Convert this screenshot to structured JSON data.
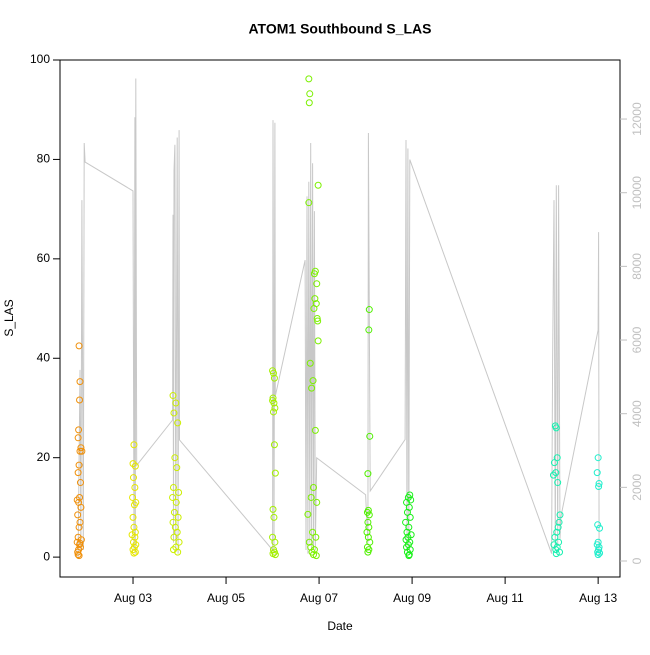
{
  "chart_data": {
    "type": "scatter",
    "title": "ATOM1 Southbound S_LAS",
    "x_label": "Date",
    "y_label": "S_LAS",
    "xlim": [
      1.43,
      13.47
    ],
    "xticks": [
      {
        "value": 3,
        "label": "Aug 03"
      },
      {
        "value": 5,
        "label": "Aug 05"
      },
      {
        "value": 7,
        "label": "Aug 07"
      },
      {
        "value": 9,
        "label": "Aug 09"
      },
      {
        "value": 11,
        "label": "Aug 11"
      },
      {
        "value": 13,
        "label": "Aug 13"
      }
    ],
    "ylim": [
      -4,
      100
    ],
    "yticks": [
      0,
      20,
      40,
      60,
      80,
      100
    ],
    "y2lim": [
      -434,
      13603
    ],
    "y2ticks": [
      0,
      2000,
      4000,
      6000,
      8000,
      10000,
      12000
    ],
    "y2_color": "#c0c0c0",
    "series": [
      {
        "color": "#f0900a",
        "x": [
          1.84,
          1.86,
          1.85,
          1.83,
          1.82,
          1.88,
          1.86,
          1.9,
          1.84,
          1.82,
          1.87,
          1.85,
          1.8,
          1.83,
          1.88,
          1.81,
          1.86,
          1.84,
          1.82,
          1.8,
          1.85,
          1.87,
          1.83,
          1.81,
          1.82,
          1.84,
          1.89,
          1.86
        ],
        "values": [
          42.5,
          35.3,
          31.6,
          25.6,
          24,
          22,
          21.3,
          21.3,
          18.5,
          17,
          15,
          12,
          11.5,
          11,
          10,
          8.5,
          7,
          6,
          4,
          3,
          2.5,
          2,
          1.5,
          1,
          0.5,
          0.3,
          3.5,
          2.8
        ]
      },
      {
        "color": "#e6e600",
        "x": [
          3.02,
          3.0,
          3.05,
          3.01,
          3.04,
          2.99,
          3.06,
          3.03,
          3.0,
          3.02,
          3.05,
          2.98,
          3.04,
          3.01,
          3.06,
          3.03,
          3.0,
          3.05,
          3.02
        ],
        "values": [
          22.6,
          18.8,
          18.3,
          16,
          14,
          12,
          11,
          10.5,
          8,
          6,
          5,
          4.5,
          4,
          3,
          2.5,
          2,
          1.5,
          1,
          0.8
        ]
      },
      {
        "color": "#ccee00",
        "x": [
          3.86,
          3.92,
          3.88,
          3.96,
          3.9,
          3.94,
          3.87,
          3.98,
          3.85,
          3.93,
          3.89,
          3.97,
          3.86,
          3.91,
          3.95,
          3.88,
          3.99,
          3.92,
          3.87,
          3.96
        ],
        "values": [
          32.5,
          31,
          29,
          27,
          20,
          18,
          14,
          13,
          12,
          11,
          9,
          8,
          7,
          6,
          5,
          4,
          3,
          2,
          1.5,
          1
        ]
      },
      {
        "color": "#a4f000",
        "x": [
          6.0,
          6.02,
          6.04,
          6.01,
          6.0,
          6.03,
          6.05,
          6.02,
          6.04,
          6.06,
          6.01,
          6.03,
          6.0,
          6.05,
          6.02,
          6.04,
          6.01,
          6.06
        ],
        "values": [
          37.5,
          37,
          36,
          32,
          31.5,
          31,
          30,
          29.2,
          22.6,
          16.9,
          9.6,
          8,
          4,
          3,
          1.5,
          1,
          0.7,
          0.5
        ]
      },
      {
        "color": "#7cf000",
        "x": [
          6.78,
          6.8,
          6.79,
          6.98,
          6.78,
          6.92,
          6.9,
          6.95,
          6.91,
          6.94,
          6.89,
          6.96,
          6.97,
          6.98,
          6.81,
          6.87,
          6.84,
          6.92,
          6.88,
          6.83,
          6.95,
          6.76,
          6.86,
          6.93,
          6.79,
          6.82,
          6.9,
          6.85,
          6.88,
          6.94
        ],
        "values": [
          96.2,
          93.2,
          91.4,
          74.8,
          71.3,
          57.5,
          57,
          55,
          52,
          51,
          50,
          48,
          47.5,
          43.5,
          39,
          35.5,
          34,
          25.5,
          14,
          12,
          11,
          8.6,
          5,
          4,
          3,
          2,
          1.5,
          1,
          0.5,
          0.3
        ]
      },
      {
        "color": "#50f000",
        "x": [
          8.08,
          8.07,
          8.09,
          8.05,
          8.06,
          8.04,
          8.08,
          8.05,
          8.07,
          8.03,
          8.06,
          8.09,
          8.04,
          8.07,
          8.05
        ],
        "values": [
          49.8,
          45.7,
          24.3,
          16.8,
          9.4,
          9,
          8.5,
          7,
          6,
          5,
          4,
          3,
          2,
          1.5,
          1
        ]
      },
      {
        "color": "#18f018",
        "x": [
          8.95,
          8.92,
          8.97,
          8.88,
          8.94,
          8.9,
          8.96,
          8.86,
          8.93,
          8.89,
          8.98,
          8.91,
          8.87,
          8.95,
          8.92,
          8.88,
          8.96,
          8.9,
          8.94,
          8.93
        ],
        "values": [
          12.5,
          12,
          11.5,
          11,
          10,
          9,
          8,
          7,
          6,
          5,
          4.5,
          4,
          3.5,
          3,
          2.5,
          2,
          1.5,
          1,
          0.5,
          0.3
        ]
      },
      {
        "color": "#18f0b0",
        "x": [
          12.08,
          12.1,
          12.12,
          12.06,
          12.09,
          12.04,
          12.13,
          12.18,
          12.16,
          12.14,
          12.11,
          12.07,
          12.15,
          12.05,
          12.12,
          12.09,
          12.17,
          12.1
        ],
        "values": [
          26.4,
          26,
          20,
          19,
          17,
          16.5,
          15,
          8.5,
          7,
          6,
          5,
          4,
          3,
          2.5,
          2,
          1.5,
          1,
          0.7
        ]
      },
      {
        "color": "#20eecc",
        "x": [
          13.0,
          12.98,
          13.02,
          13.01,
          12.99,
          13.03,
          13.0,
          12.98,
          13.02,
          13.01,
          12.99,
          13.03,
          13.0
        ],
        "values": [
          20,
          17,
          14.8,
          14.2,
          6.5,
          5.8,
          3,
          2.5,
          2,
          1.5,
          1,
          0.8,
          0.5
        ]
      }
    ],
    "line": {
      "axis": "y2",
      "color": "#c8c8c8",
      "x": [
        1.82,
        1.86,
        1.88,
        1.9,
        1.93,
        1.95,
        1.97,
        3.0,
        3.02,
        3.04,
        3.05,
        3.06,
        3.08,
        3.85,
        3.86,
        3.87,
        3.88,
        3.9,
        3.92,
        3.95,
        3.97,
        3.99,
        4.0,
        6.0,
        6.01,
        6.03,
        6.05,
        6.06,
        6.7,
        6.72,
        6.74,
        6.76,
        6.78,
        6.8,
        6.82,
        6.84,
        6.86,
        6.88,
        6.9,
        6.92,
        6.95,
        8.0,
        8.05,
        8.06,
        8.1,
        8.85,
        8.87,
        8.89,
        8.91,
        8.93,
        8.95,
        12.0,
        12.02,
        12.05,
        12.08,
        12.1,
        12.13,
        12.15,
        12.18,
        12.2,
        13.0,
        13.01,
        13.02
      ],
      "values": [
        100,
        5190,
        200,
        9800,
        300,
        11350,
        10830,
        10050,
        300,
        12050,
        200,
        13100,
        2600,
        3830,
        9400,
        500,
        10600,
        11300,
        300,
        11500,
        200,
        11700,
        3285,
        300,
        11970,
        200,
        11900,
        4480,
        8170,
        300,
        9900,
        200,
        10300,
        500,
        11350,
        300,
        10800,
        400,
        9500,
        300,
        2800,
        1800,
        500,
        11620,
        1900,
        3300,
        11430,
        300,
        11200,
        400,
        10900,
        200,
        5400,
        9800,
        300,
        10200,
        400,
        10200,
        600,
        1200,
        6270,
        8930,
        100
      ]
    }
  }
}
